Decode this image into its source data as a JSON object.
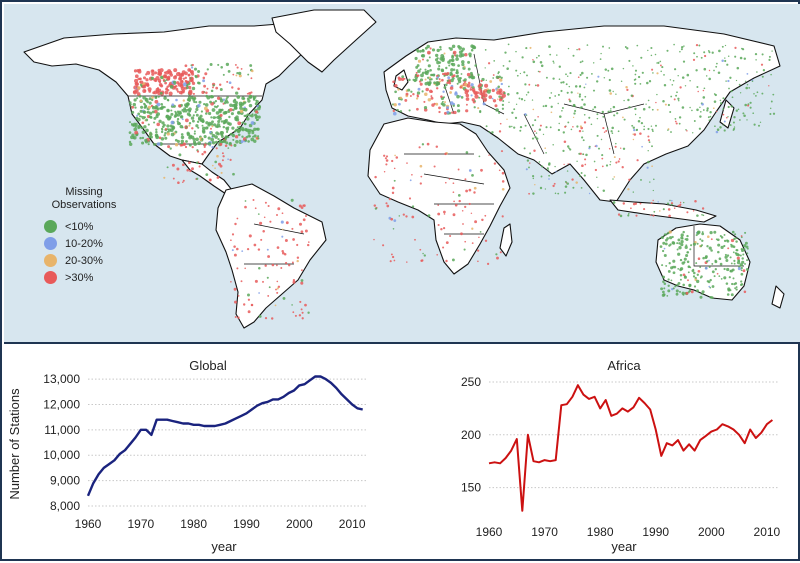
{
  "map": {
    "legend": {
      "title_line1": "Missing",
      "title_line2": "Observations",
      "items": [
        {
          "label": "<10%",
          "color": "#5aa85a"
        },
        {
          "label": "10-20%",
          "color": "#7f9ee8"
        },
        {
          "label": "20-30%",
          "color": "#e8b46a"
        },
        {
          "label": ">30%",
          "color": "#e85a5a"
        }
      ]
    },
    "ocean_color": "#d7e6ef",
    "land_color": "#ffffff",
    "border_color": "#111111"
  },
  "chart_data": [
    {
      "type": "line",
      "title": "Global",
      "xlabel": "year",
      "ylabel": "Number of Stations",
      "xlim": [
        1960,
        2013
      ],
      "ylim": [
        8000,
        13200
      ],
      "xticks": [
        1960,
        1970,
        1980,
        1990,
        2000,
        2010
      ],
      "yticks": [
        8000,
        9000,
        10000,
        11000,
        12000,
        13000
      ],
      "ytick_labels": [
        "8,000",
        "9,000",
        "10,000",
        "11,000",
        "12,000",
        "13,000"
      ],
      "grid": true,
      "color": "#1a237e",
      "x": [
        1960,
        1961,
        1962,
        1963,
        1964,
        1965,
        1966,
        1967,
        1968,
        1969,
        1970,
        1971,
        1972,
        1973,
        1974,
        1975,
        1976,
        1977,
        1978,
        1979,
        1980,
        1981,
        1982,
        1983,
        1984,
        1985,
        1986,
        1987,
        1988,
        1989,
        1990,
        1991,
        1992,
        1993,
        1994,
        1995,
        1996,
        1997,
        1998,
        1999,
        2000,
        2001,
        2002,
        2003,
        2004,
        2005,
        2006,
        2007,
        2008,
        2009,
        2010,
        2011,
        2012
      ],
      "y": [
        8400,
        8900,
        9250,
        9500,
        9650,
        9800,
        10050,
        10200,
        10450,
        10700,
        11000,
        11000,
        10800,
        11400,
        11400,
        11400,
        11350,
        11300,
        11250,
        11250,
        11200,
        11200,
        11150,
        11150,
        11150,
        11200,
        11250,
        11350,
        11450,
        11550,
        11650,
        11800,
        11950,
        12050,
        12100,
        12200,
        12200,
        12300,
        12450,
        12550,
        12750,
        12800,
        12950,
        13100,
        13100,
        13000,
        12850,
        12650,
        12400,
        12200,
        12000,
        11850,
        11800
      ]
    },
    {
      "type": "line",
      "title": "Africa",
      "xlabel": "year",
      "ylabel": "",
      "xlim": [
        1960,
        2012
      ],
      "ylim": [
        125,
        250
      ],
      "xticks": [
        1960,
        1970,
        1980,
        1990,
        2000,
        2010
      ],
      "yticks": [
        150,
        200,
        250
      ],
      "ytick_labels": [
        "150",
        "200",
        "250"
      ],
      "grid": true,
      "color": "#cc1111",
      "x": [
        1960,
        1961,
        1962,
        1963,
        1964,
        1965,
        1966,
        1967,
        1968,
        1969,
        1970,
        1971,
        1972,
        1973,
        1974,
        1975,
        1976,
        1977,
        1978,
        1979,
        1980,
        1981,
        1982,
        1983,
        1984,
        1985,
        1986,
        1987,
        1988,
        1989,
        1990,
        1991,
        1992,
        1993,
        1994,
        1995,
        1996,
        1997,
        1998,
        1999,
        2000,
        2001,
        2002,
        2003,
        2004,
        2005,
        2006,
        2007,
        2008,
        2009,
        2010,
        2011
      ],
      "y": [
        173,
        174,
        173,
        178,
        185,
        196,
        128,
        200,
        175,
        174,
        176,
        175,
        176,
        228,
        229,
        236,
        247,
        238,
        234,
        236,
        225,
        233,
        218,
        220,
        225,
        222,
        226,
        235,
        230,
        224,
        205,
        180,
        192,
        190,
        195,
        185,
        191,
        185,
        195,
        199,
        203,
        205,
        210,
        208,
        205,
        200,
        192,
        205,
        197,
        202,
        210,
        214
      ]
    }
  ]
}
